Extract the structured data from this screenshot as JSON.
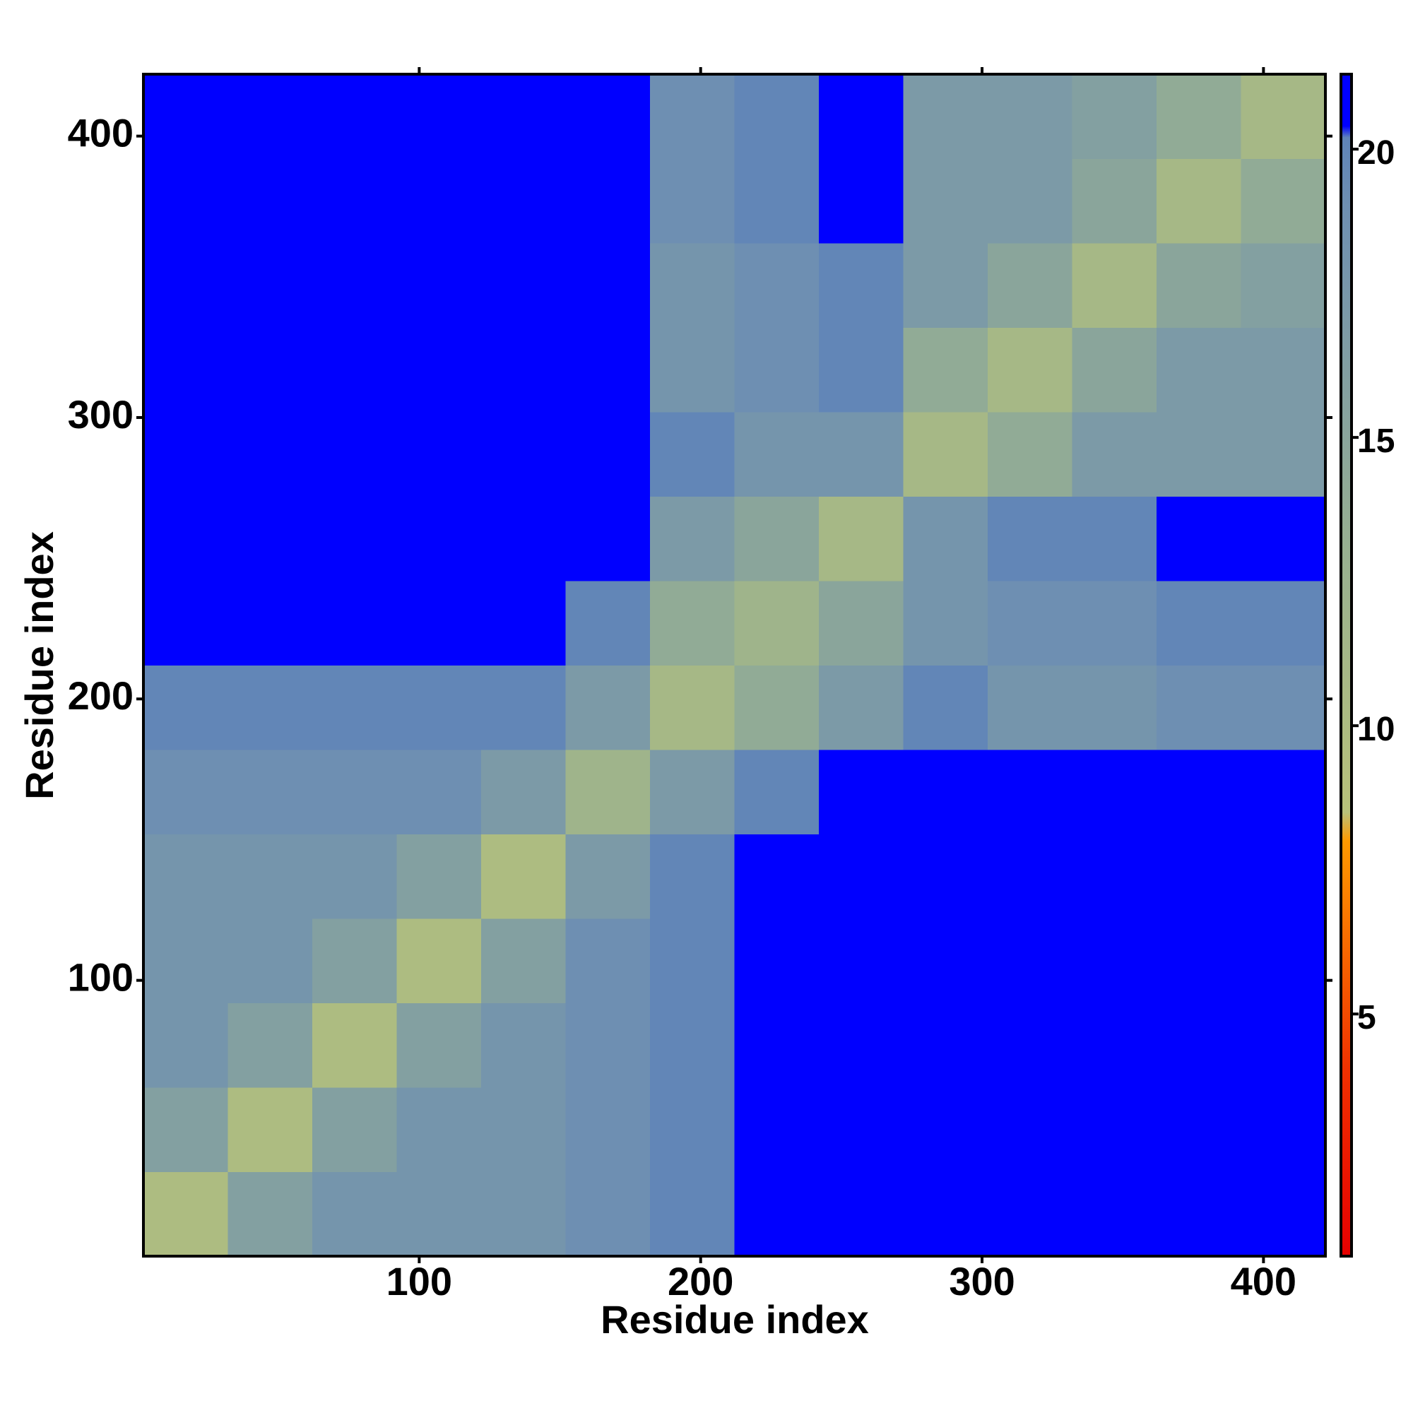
{
  "chart_data": {
    "type": "heatmap",
    "xlabel": "Residue index",
    "ylabel": "Residue index",
    "xbins": [
      2,
      32,
      62,
      92,
      122,
      152,
      182,
      212,
      242,
      272,
      302,
      332,
      362,
      392,
      422
    ],
    "ybins": [
      2,
      32,
      62,
      92,
      122,
      152,
      182,
      212,
      242,
      272,
      302,
      332,
      362,
      392,
      422
    ],
    "z": [
      [
        10,
        16,
        18,
        18,
        18,
        19,
        20,
        20.5,
        21,
        21,
        21,
        21,
        21,
        21
      ],
      [
        16,
        10,
        16,
        18,
        18,
        19,
        20,
        20.5,
        21,
        21,
        21,
        21,
        21,
        21
      ],
      [
        18,
        16,
        10,
        16,
        18,
        19,
        20,
        20.5,
        21,
        21,
        21,
        21,
        21,
        21
      ],
      [
        18,
        18,
        16,
        10,
        16,
        19,
        20,
        20.5,
        21,
        21,
        21,
        21,
        21,
        21
      ],
      [
        18,
        18,
        18,
        16,
        10,
        17,
        20,
        20.5,
        21,
        21,
        21,
        21,
        21,
        21
      ],
      [
        19,
        19,
        19,
        19,
        17,
        12,
        17,
        20,
        20.5,
        21,
        21,
        21,
        21,
        21
      ],
      [
        20,
        20,
        20,
        20,
        20,
        17,
        11,
        14,
        17,
        20,
        18,
        18,
        19,
        19
      ],
      [
        20.5,
        20.5,
        20.5,
        20.5,
        20.5,
        20,
        14,
        12,
        15,
        18,
        19,
        19,
        20,
        20
      ],
      [
        21,
        21,
        21,
        21,
        21,
        20.5,
        17,
        15,
        11,
        18,
        20,
        20,
        21,
        21
      ],
      [
        21,
        21,
        21,
        21,
        21,
        21,
        20,
        18,
        18,
        11,
        14,
        17,
        17,
        17
      ],
      [
        21,
        21,
        21,
        21,
        21,
        21,
        18,
        19,
        20,
        14,
        11,
        15,
        17,
        17
      ],
      [
        21,
        21,
        21,
        21,
        21,
        21,
        18,
        19,
        20,
        17,
        15,
        11,
        15,
        16
      ],
      [
        21,
        21,
        21,
        21,
        21,
        21,
        19,
        20,
        21,
        17,
        17,
        15,
        11,
        14
      ],
      [
        21,
        21,
        21,
        21,
        21,
        21,
        19,
        20,
        21,
        17,
        17,
        16,
        14,
        11
      ]
    ],
    "xlim": [
      2,
      422
    ],
    "ylim": [
      2,
      422
    ],
    "xticks": [
      100,
      200,
      300,
      400
    ],
    "yticks": [
      100,
      200,
      300,
      400
    ],
    "zlim": [
      0.8,
      21.3
    ],
    "zticks": [
      5,
      10,
      15,
      20
    ],
    "colorscale": [
      [
        0.8,
        "#e60000"
      ],
      [
        4,
        "#f03000"
      ],
      [
        8,
        "#ff9a00"
      ],
      [
        8.5,
        "#b8c27a"
      ],
      [
        13,
        "#98b090"
      ],
      [
        19,
        "#6e8fb2"
      ],
      [
        20.2,
        "#5f84b8"
      ],
      [
        20.4,
        "#0000ff"
      ],
      [
        21.3,
        "#0000ff"
      ]
    ]
  }
}
